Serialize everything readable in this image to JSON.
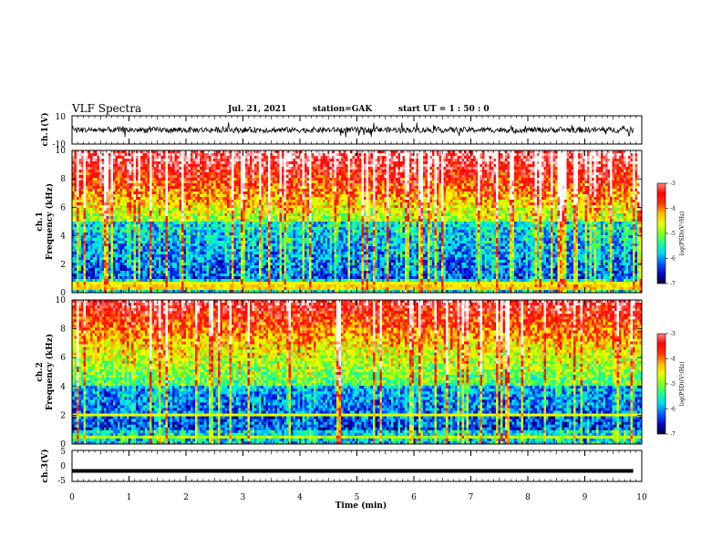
{
  "header": {
    "title": "VLF Spectra",
    "date": "Jul. 21, 2021",
    "station": "station=GAK",
    "start": "start UT = 1 : 50 : 0"
  },
  "colors": {
    "background": "#ffffff",
    "axes": "#000000",
    "spectrogram_colormap": [
      "#000040",
      "#0000c0",
      "#0040ff",
      "#00c0ff",
      "#00ffd0",
      "#40ff40",
      "#c0ff00",
      "#ffff00",
      "#ffa000",
      "#ff2000",
      "#ff0000",
      "#ff8080",
      "#ffffff"
    ]
  },
  "chart_data": [
    {
      "id": "ch1-waveform",
      "type": "line",
      "ylabel": "ch.1(V)",
      "ylim": [
        -10,
        10
      ],
      "yticks": [
        10,
        -10
      ],
      "xlim": [
        0,
        10
      ],
      "series": [
        {
          "values_description_only": "",
          "mean": 0,
          "amplitude_range": [
            -5,
            5
          ]
        }
      ]
    },
    {
      "id": "ch1-spectrogram",
      "type": "heatmap",
      "ylabel": "ch.1\nFrequency (kHz)",
      "ylim": [
        0,
        10
      ],
      "yticks": [
        "0",
        "2",
        "4",
        "6",
        "8",
        "10"
      ],
      "xlim": [
        0,
        10
      ],
      "colorbar": {
        "label": "log(PSD)(V²/Hz)",
        "range": [
          -7,
          -3
        ],
        "ticks": [
          "-3",
          "-4",
          "-5",
          "-6",
          "-7"
        ]
      }
    },
    {
      "id": "ch2-spectrogram",
      "type": "heatmap",
      "ylabel": "ch.2\nFrequency (kHz)",
      "ylim": [
        0,
        10
      ],
      "yticks": [
        "0",
        "2",
        "4",
        "6",
        "8",
        "10"
      ],
      "xlim": [
        0,
        10
      ],
      "colorbar": {
        "label": "log(PSD)(V²/Hz)",
        "range": [
          -7,
          -3
        ],
        "ticks": [
          "-3",
          "-4",
          "-5",
          "-6",
          "-7"
        ]
      }
    },
    {
      "id": "ch3-waveform",
      "type": "line",
      "ylabel": "ch.3(V)",
      "ylim": [
        -5,
        5
      ],
      "yticks": [
        "5",
        "0",
        "-5"
      ],
      "xlim": [
        0,
        10
      ],
      "series": [
        {
          "constant_value": -1.6
        }
      ]
    }
  ],
  "xaxis": {
    "label": "Time (min)",
    "ticks": [
      "0",
      "1",
      "2",
      "3",
      "4",
      "5",
      "6",
      "7",
      "8",
      "9",
      "10"
    ]
  }
}
